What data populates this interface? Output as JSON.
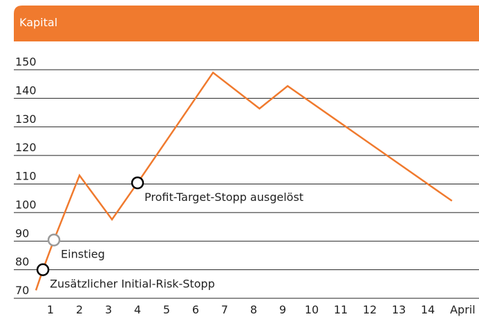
{
  "chart_data": {
    "type": "line",
    "title": "Kapital",
    "series": [
      {
        "name": "Kapital",
        "color": "#f07a2e",
        "x": [
          0.5,
          0.74,
          1.12,
          2,
          3.12,
          4,
          6.6,
          8.2,
          9.17,
          14.83
        ],
        "values": [
          72.8,
          80,
          90.4,
          113,
          97.6,
          110.4,
          149,
          136.4,
          144.3,
          104.1
        ]
      }
    ],
    "xlim": [
      0,
      15.5
    ],
    "xticks": [
      1,
      2,
      3,
      4,
      5,
      6,
      7,
      8,
      9,
      10,
      11,
      12,
      13,
      14,
      {
        "value": 15.2,
        "label": "April"
      }
    ],
    "ylim": [
      70,
      150
    ],
    "yticks": [
      70,
      80,
      90,
      100,
      110,
      120,
      130,
      140,
      150
    ],
    "grid": true,
    "annotations": [
      {
        "text": "Zusätzlicher Initial-Risk-Stopp",
        "x": 0.74,
        "y": 80,
        "color": "#000000"
      },
      {
        "text": "Einstieg",
        "x": 1.12,
        "y": 90.4,
        "color": "#999999"
      },
      {
        "text": "Profit-Target-Stopp ausgelöst",
        "x": 4,
        "y": 110.4,
        "color": "#000000"
      }
    ]
  }
}
